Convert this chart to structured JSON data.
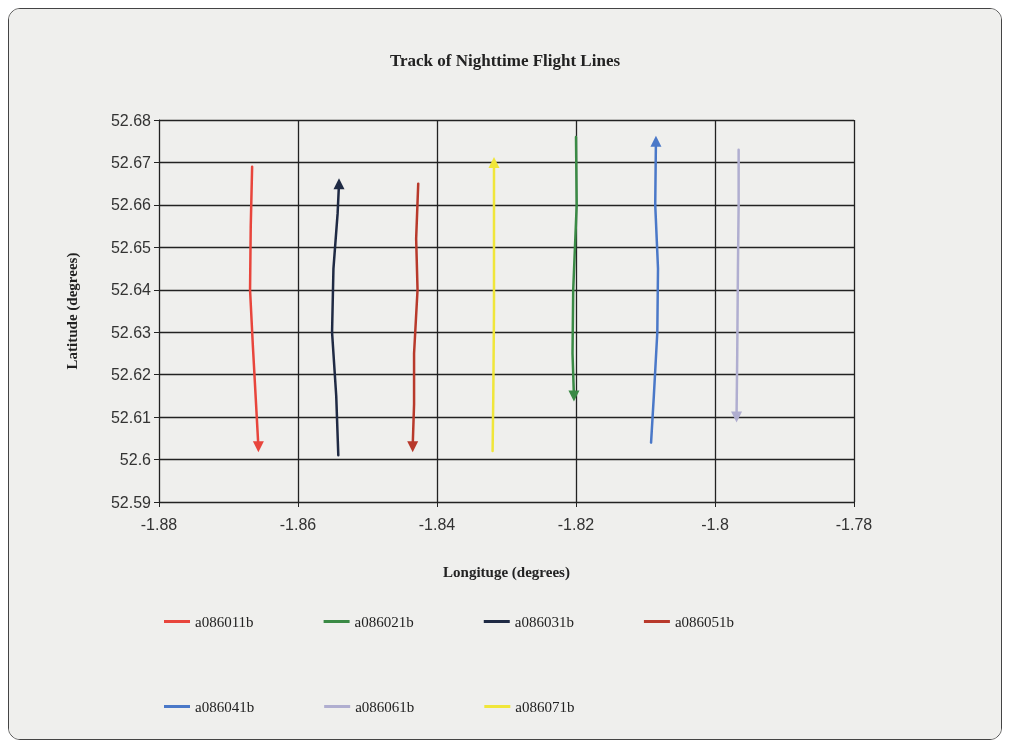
{
  "chart_data": {
    "type": "line",
    "title": "Track of Nighttime Flight Lines",
    "xlabel": "Longituge (degrees)",
    "ylabel": "Latitude (degrees)",
    "xlim": [
      -1.88,
      -1.78
    ],
    "xticks": [
      -1.88,
      -1.86,
      -1.84,
      -1.82,
      -1.8,
      -1.78
    ],
    "ylim": [
      52.59,
      52.68
    ],
    "yticks": [
      52.59,
      52.6,
      52.61,
      52.62,
      52.63,
      52.64,
      52.65,
      52.66,
      52.67,
      52.68
    ],
    "grid": true,
    "legend": "bottom",
    "marker": "none",
    "line_style": "solid",
    "series": [
      {
        "name": "a086011b",
        "color": "#e8453c",
        "x": [
          -1.8666,
          -1.8668,
          -1.8669,
          -1.8665,
          -1.8661,
          -1.8657
        ],
        "values": [
          52.669,
          52.655,
          52.64,
          52.627,
          52.615,
          52.603
        ]
      },
      {
        "name": "a086021b",
        "color": "#3a8a45",
        "x": [
          -1.82,
          -1.8199,
          -1.8204,
          -1.8205,
          -1.8203
        ],
        "values": [
          52.676,
          52.66,
          52.64,
          52.625,
          52.615
        ]
      },
      {
        "name": "a086031b",
        "color": "#1f2a44",
        "x": [
          -1.8542,
          -1.8545,
          -1.8551,
          -1.8549,
          -1.8543,
          -1.8541
        ],
        "values": [
          52.601,
          52.615,
          52.63,
          52.645,
          52.658,
          52.665
        ]
      },
      {
        "name": "a086051b",
        "color": "#b8392b",
        "x": [
          -1.8427,
          -1.843,
          -1.8428,
          -1.8433,
          -1.8433,
          -1.8435
        ],
        "values": [
          52.665,
          52.652,
          52.64,
          52.625,
          52.613,
          52.603
        ]
      },
      {
        "name": "a086041b",
        "color": "#4a78c8",
        "x": [
          -1.8092,
          -1.8088,
          -1.8083,
          -1.8082,
          -1.8086,
          -1.8085
        ],
        "values": [
          52.604,
          52.615,
          52.63,
          52.645,
          52.66,
          52.675
        ]
      },
      {
        "name": "a086061b",
        "color": "#b0aed0",
        "x": [
          -1.7966,
          -1.7966,
          -1.7967,
          -1.7968,
          -1.7969
        ],
        "values": [
          52.673,
          52.66,
          52.645,
          52.625,
          52.61
        ]
      },
      {
        "name": "a086071b",
        "color": "#f0e63a",
        "x": [
          -1.832,
          -1.8319,
          -1.8318,
          -1.8318,
          -1.8318
        ],
        "values": [
          52.602,
          52.615,
          52.635,
          52.655,
          52.67
        ]
      }
    ]
  }
}
